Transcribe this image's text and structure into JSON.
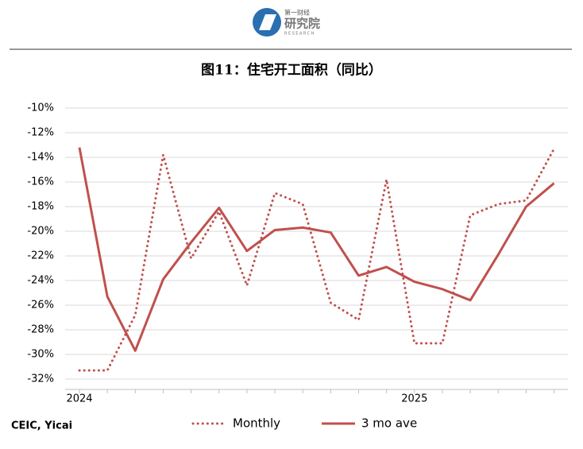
{
  "logo": {
    "top": "第一财经",
    "main": "研究院",
    "sub": "RESEARCH"
  },
  "chart_data": {
    "type": "line",
    "title": "图11：住宅开工面积（同比）",
    "source": "CEIC, Yicai",
    "categories": [
      "2024",
      null,
      null,
      null,
      null,
      null,
      null,
      null,
      null,
      null,
      null,
      null,
      "2025",
      null,
      null,
      null,
      null,
      null
    ],
    "series": [
      {
        "name": "Monthly",
        "color": "#c0504d",
        "style": "dotted",
        "values": [
          -31.3,
          -31.3,
          -26.8,
          -13.8,
          -22.2,
          -18.4,
          -24.4,
          -16.9,
          -17.8,
          -25.8,
          -27.2,
          -15.8,
          -29.1,
          -29.1,
          -18.7,
          -17.8,
          -17.5,
          -13.3
        ]
      },
      {
        "name": "3 mo ave",
        "color": "#c0504d",
        "style": "solid",
        "values": [
          -13.2,
          -25.3,
          -29.7,
          -23.9,
          -20.9,
          -18.1,
          -21.6,
          -19.9,
          -19.7,
          -20.1,
          -23.6,
          -22.9,
          -24.1,
          -24.7,
          -25.6,
          -21.9,
          -18.0,
          -16.1
        ]
      }
    ],
    "ylim": [
      -32,
      -10
    ],
    "yticks": [
      {
        "value": -10,
        "label": "-10%"
      },
      {
        "value": -12,
        "label": "-12%"
      },
      {
        "value": -14,
        "label": "-14%"
      },
      {
        "value": -16,
        "label": "-16%"
      },
      {
        "value": -18,
        "label": "-18%"
      },
      {
        "value": -20,
        "label": "-20%"
      },
      {
        "value": -22,
        "label": "-22%"
      },
      {
        "value": -24,
        "label": "-24%"
      },
      {
        "value": -26,
        "label": "-26%"
      },
      {
        "value": -28,
        "label": "-28%"
      },
      {
        "value": -30,
        "label": "-30%"
      },
      {
        "value": -32,
        "label": "-32%"
      }
    ],
    "grid": true,
    "legend": "bottom"
  }
}
